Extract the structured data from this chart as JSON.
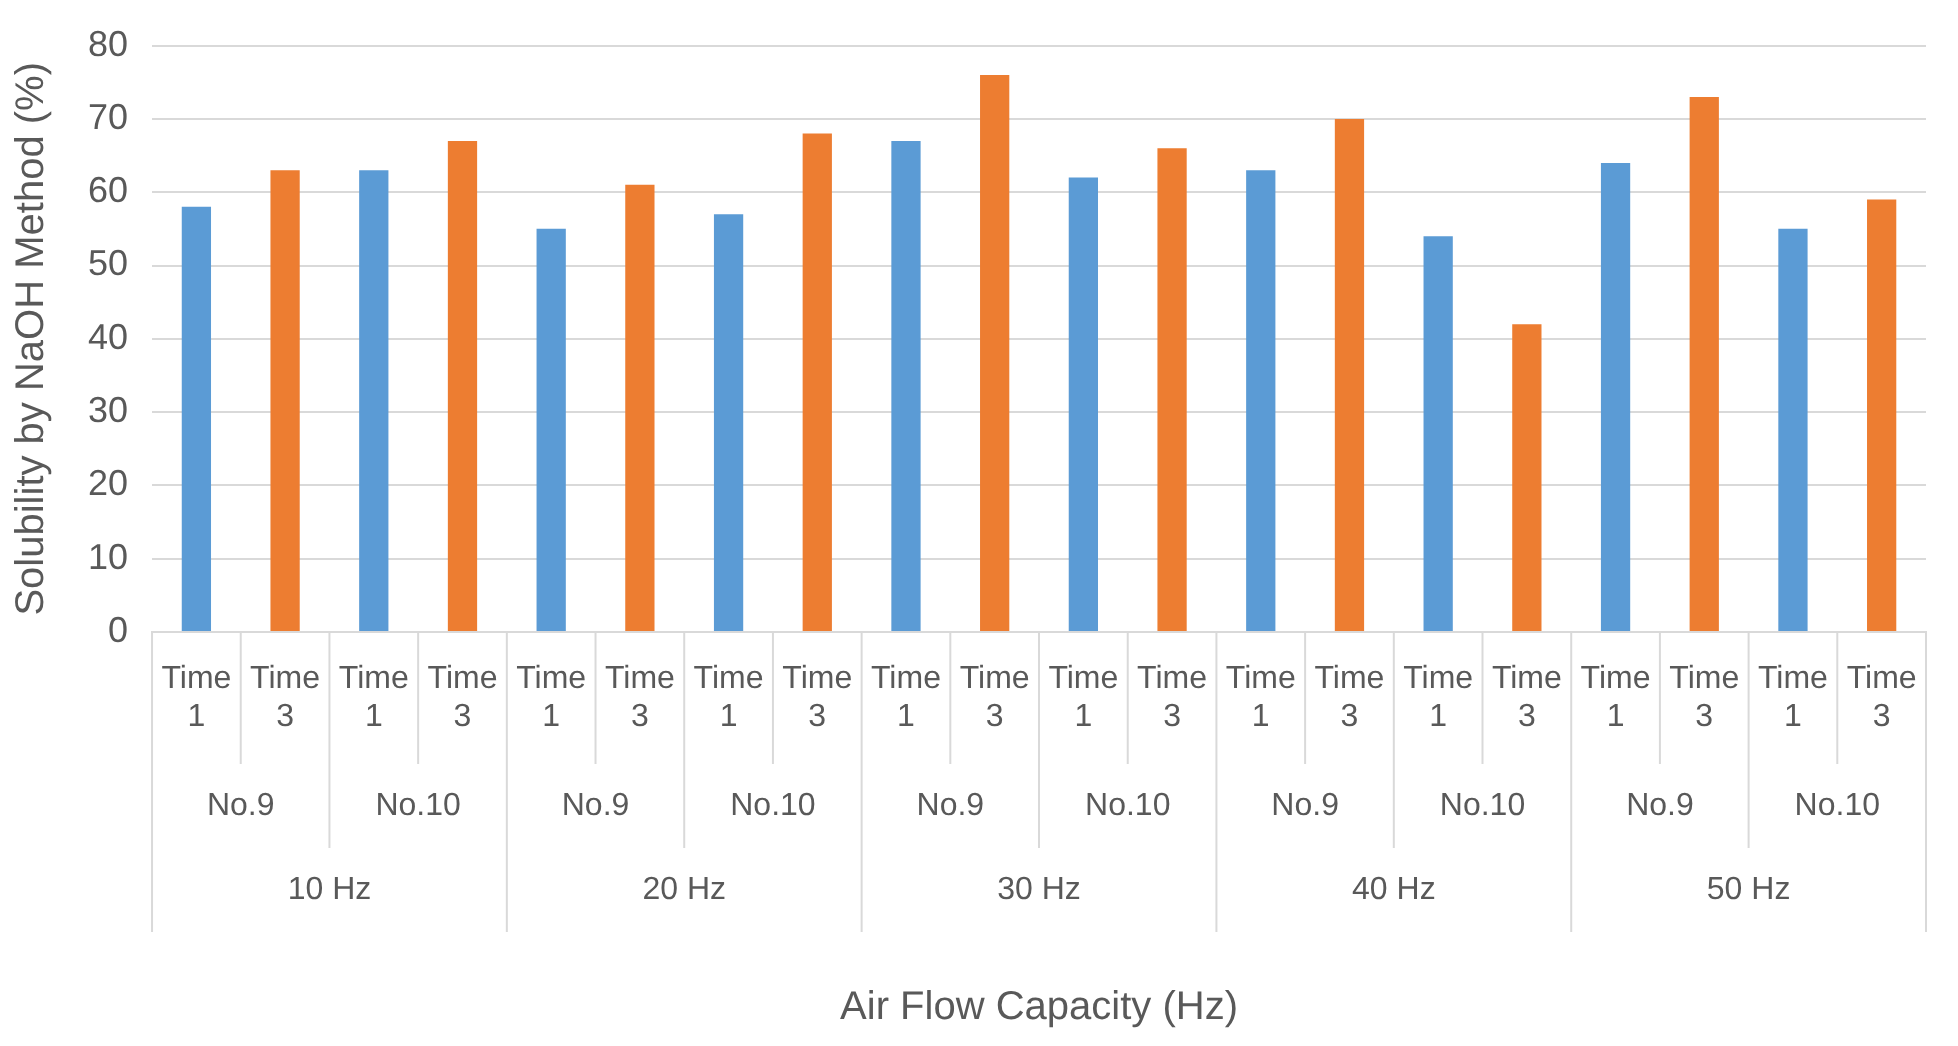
{
  "chart_data": {
    "type": "bar",
    "ylabel": "Solubility by NaOH Method (%)",
    "categories": [
      "Time 1",
      "Time 3",
      "Time 1",
      "Time 3",
      "Time 1",
      "Time 3",
      "Time 1",
      "Time 3",
      "Time 1",
      "Time 3",
      "Time 1",
      "Time 3",
      "Time 1",
      "Time 3",
      "Time 1",
      "Time 3",
      "Time 1",
      "Time 3",
      "Time 1",
      "Time 3"
    ],
    "values": [
      58,
      63,
      63,
      67,
      55,
      61,
      57,
      68,
      67,
      76,
      62,
      66,
      63,
      70,
      54,
      42,
      64,
      73,
      55,
      59
    ],
    "colors": [
      "#5b9bd5",
      "#ed7d31",
      "#5b9bd5",
      "#ed7d31",
      "#5b9bd5",
      "#ed7d31",
      "#5b9bd5",
      "#ed7d31",
      "#5b9bd5",
      "#ed7d31",
      "#5b9bd5",
      "#ed7d31",
      "#5b9bd5",
      "#ed7d31",
      "#5b9bd5",
      "#ed7d31",
      "#5b9bd5",
      "#ed7d31",
      "#5b9bd5",
      "#ed7d31"
    ],
    "annotations": [
      "No.9",
      "No.10",
      "No.9",
      "No.10",
      "No.9",
      "No.10",
      "No.9",
      "No.10",
      "No.9",
      "No.10",
      "10 Hz",
      "20 Hz",
      "30 Hz",
      "40 Hz",
      "50 Hz",
      "Air Flow Capacity (Hz)"
    ],
    "ylim": [
      0,
      80
    ],
    "yticks": [
      0,
      10,
      20,
      30,
      40,
      50,
      60,
      70,
      80
    ],
    "grid": "y",
    "legend": false
  }
}
